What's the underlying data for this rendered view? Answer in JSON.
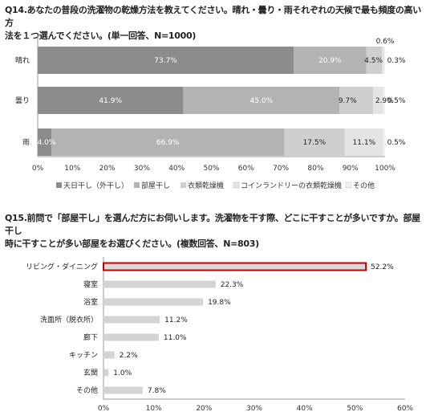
{
  "q14": {
    "title_line1": "Q14.あなたの普段の洗濯物の乾燥方法を教えてください。晴れ・曇り・雨それぞれの天候で最も頻度の高い方",
    "title_line2": "法を１つ選んでください。(単一回答、N=1000)"
  },
  "q15": {
    "title_line1": "Q15.前問で「部屋干し」を選んだ方にお伺いします。洗濯物を干す際、どこに干すことが多いですか。部屋干し",
    "title_line2": "時に干すことが多い部屋をお選びください。(複数回答、N=803)"
  },
  "chart_data": [
    {
      "type": "bar",
      "orientation": "horizontal",
      "stacked": true,
      "categories": [
        "晴れ",
        "曇り",
        "雨"
      ],
      "series": [
        {
          "name": "天日干し（外干し）",
          "color": "#8c8c8c",
          "values": [
            73.7,
            41.9,
            4.0
          ],
          "labels": [
            "73.7%",
            "41.9%",
            "4.0%"
          ]
        },
        {
          "name": "部屋干し",
          "color": "#b3b3b3",
          "values": [
            20.9,
            45.0,
            66.9
          ],
          "labels": [
            "20.9%",
            "45.0%",
            "66.9%"
          ]
        },
        {
          "name": "衣類乾燥機",
          "color": "#cfcfcf",
          "values": [
            4.5,
            9.7,
            17.5
          ],
          "labels": [
            "4.5%",
            "9.7%",
            "17.5%"
          ]
        },
        {
          "name": "コインランドリーの衣類乾燥機",
          "color": "#e4e4e4",
          "values": [
            0.6,
            2.9,
            11.1
          ],
          "labels": [
            "0.6%",
            "2.9%",
            "11.1%"
          ]
        },
        {
          "name": "その他",
          "color": "#f2f2f2",
          "values": [
            0.3,
            0.5,
            0.5
          ],
          "labels": [
            "0.3%",
            "0.5%",
            "0.5%"
          ]
        }
      ],
      "xlim": [
        0,
        100
      ],
      "xticks": [
        "0%",
        "10%",
        "20%",
        "30%",
        "40%",
        "50%",
        "60%",
        "70%",
        "80%",
        "90%",
        "100%"
      ],
      "legend": "bottom",
      "grid": false
    },
    {
      "type": "bar",
      "orientation": "horizontal",
      "categories": [
        "リビング・ダイニング",
        "寝室",
        "浴室",
        "洗面所（脱衣所）",
        "廊下",
        "キッチン",
        "玄関",
        "その他"
      ],
      "values": [
        52.2,
        22.3,
        19.8,
        11.2,
        11.0,
        2.2,
        1.0,
        7.8
      ],
      "labels": [
        "52.2%",
        "22.3%",
        "19.8%",
        "11.2%",
        "11.0%",
        "2.2%",
        "1.0%",
        "7.8%"
      ],
      "highlight": {
        "index": 0,
        "fill": "#d9d9d9",
        "border": "#c00000"
      },
      "bar_color": "#d4d4d4",
      "xlim": [
        0,
        60
      ],
      "xticks": [
        "0%",
        "10%",
        "20%",
        "30%",
        "40%",
        "50%",
        "60%"
      ],
      "grid": false
    }
  ]
}
